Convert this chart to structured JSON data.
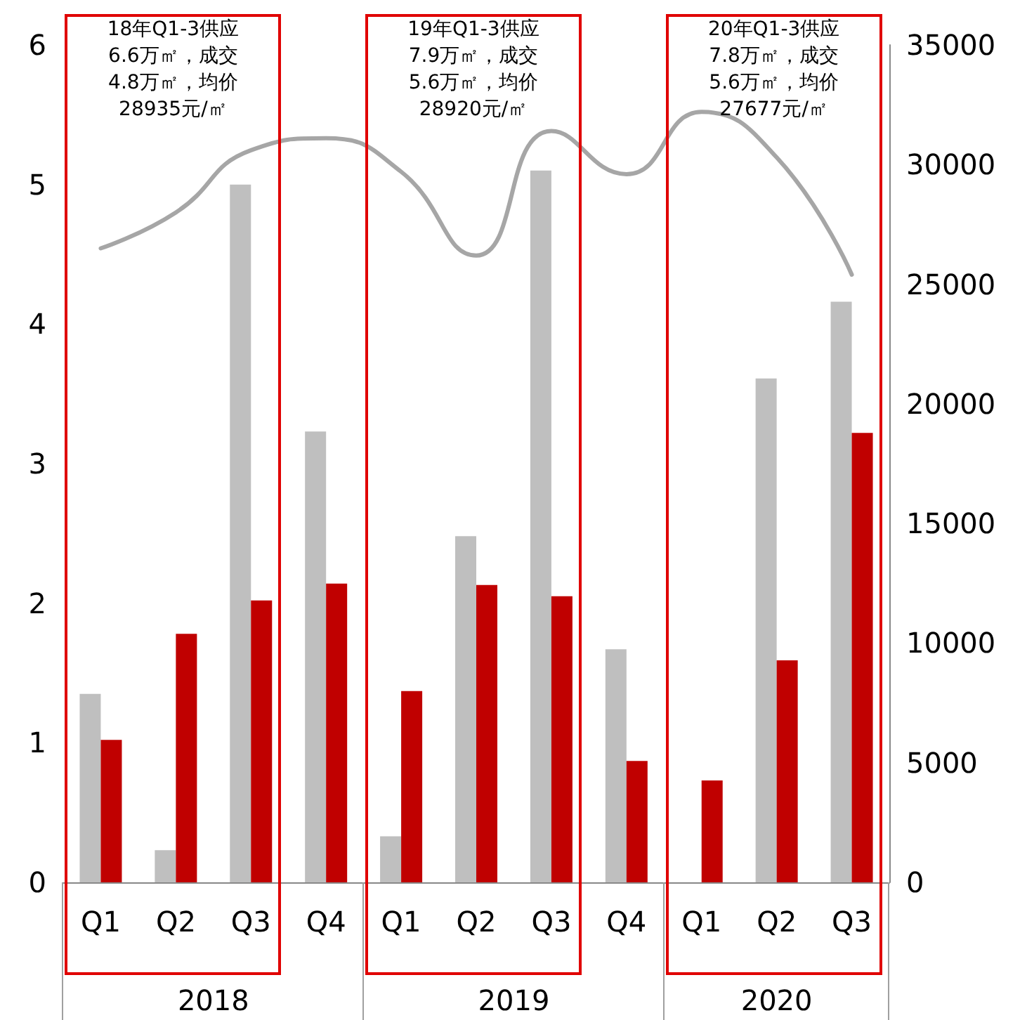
{
  "chart_data": {
    "type": "bar",
    "categories": [
      "Q1",
      "Q2",
      "Q3",
      "Q4",
      "Q1",
      "Q2",
      "Q3",
      "Q4",
      "Q1",
      "Q2",
      "Q3"
    ],
    "series": [
      {
        "color": "#bfbfbf",
        "values": [
          1.35,
          0.23,
          5.0,
          3.23,
          0.33,
          2.48,
          5.1,
          1.67,
          null,
          3.61,
          4.16
        ]
      },
      {
        "color": "#c00000",
        "values": [
          1.02,
          1.78,
          2.02,
          2.14,
          1.37,
          2.13,
          2.05,
          0.87,
          0.73,
          1.59,
          3.22
        ]
      },
      {
        "type": "line",
        "axis": "y2",
        "color": "#a6a6a6",
        "values": [
          26500,
          28000,
          30600,
          31100,
          29700,
          26200,
          31400,
          29600,
          32200,
          30300,
          25400
        ]
      }
    ],
    "ylim": [
      0,
      6
    ],
    "yticks": [
      0,
      1,
      2,
      3,
      4,
      5,
      6
    ],
    "y2lim": [
      0,
      35000
    ],
    "y2ticks": [
      0,
      5000,
      10000,
      15000,
      20000,
      25000,
      30000,
      35000
    ],
    "grid": false,
    "marker": "none",
    "line_style": "solid",
    "annotations": [
      "18年Q1-3供应\n6.6万㎡，成交\n4.8万㎡，均价\n28935元/㎡",
      "19年Q1-3供应\n7.9万㎡，成交\n5.6万㎡，均价\n28920元/㎡",
      "20年Q1-3供应\n7.8万㎡，成交\n5.6万㎡，均价\n27677元/㎡",
      "2018",
      "2019",
      "2020"
    ]
  }
}
